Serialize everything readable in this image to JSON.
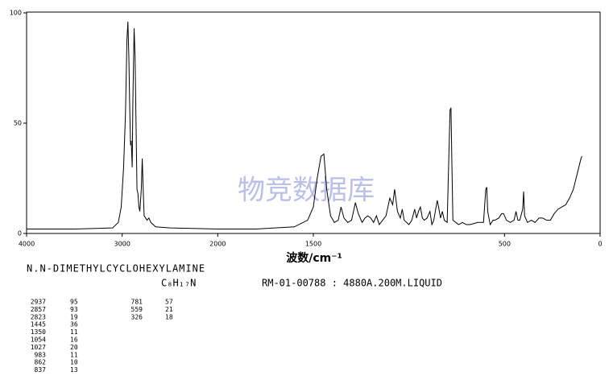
{
  "chart_data": {
    "type": "line",
    "color": "#000000",
    "xlabel": "波数/cm⁻¹",
    "watermark": "物竞数据库",
    "xlim": [
      4000,
      0
    ],
    "x_scale_break": 2000,
    "xticks": [
      4000,
      3000,
      2000,
      1500,
      500,
      0
    ],
    "ylim": [
      0,
      100
    ],
    "yticks": [
      0,
      50,
      100
    ],
    "x": [
      4000,
      3500,
      3100,
      3040,
      3010,
      2985,
      2965,
      2950,
      2940,
      2930,
      2920,
      2912,
      2905,
      2895,
      2888,
      2875,
      2865,
      2855,
      2845,
      2835,
      2825,
      2815,
      2800,
      2790,
      2780,
      2770,
      2740,
      2720,
      2700,
      2650,
      2500,
      2000,
      1800,
      1600,
      1530,
      1500,
      1480,
      1460,
      1445,
      1430,
      1410,
      1390,
      1370,
      1355,
      1340,
      1320,
      1300,
      1280,
      1265,
      1245,
      1230,
      1215,
      1200,
      1185,
      1170,
      1155,
      1120,
      1100,
      1085,
      1075,
      1060,
      1045,
      1035,
      1025,
      1000,
      985,
      970,
      960,
      950,
      940,
      930,
      920,
      905,
      890,
      880,
      870,
      862,
      852,
      845,
      835,
      825,
      815,
      800,
      785,
      780,
      775,
      770,
      740,
      720,
      700,
      680,
      640,
      610,
      598,
      593,
      588,
      575,
      560,
      550,
      530,
      515,
      505,
      490,
      470,
      450,
      440,
      430,
      420,
      405,
      400,
      395,
      380,
      360,
      340,
      320,
      300,
      280,
      260,
      240,
      220,
      200,
      180,
      160,
      140,
      120,
      100,
      95
    ],
    "values": [
      2,
      2,
      2.5,
      5,
      12,
      30,
      55,
      88,
      96,
      80,
      55,
      40,
      42,
      30,
      60,
      93,
      80,
      50,
      20,
      18,
      12,
      10,
      20,
      34,
      20,
      8,
      6,
      7,
      5,
      3,
      2.5,
      2,
      2,
      3,
      6,
      12,
      25,
      35,
      36,
      20,
      8,
      5,
      6,
      12,
      7,
      5,
      6,
      14,
      9,
      5,
      7,
      8,
      7,
      5,
      8,
      4,
      8,
      16,
      13,
      20,
      10,
      7,
      11,
      6,
      4,
      6,
      11,
      7,
      10,
      12,
      7,
      6,
      7,
      10,
      4,
      6,
      10,
      15,
      12,
      7,
      10,
      6,
      5,
      56,
      57,
      30,
      6,
      4,
      5,
      4,
      4,
      5,
      5,
      20,
      21,
      10,
      4,
      6,
      6,
      7,
      9,
      9,
      6,
      5,
      6,
      10,
      6,
      6,
      11,
      19,
      8,
      5,
      6,
      5,
      7,
      7,
      6,
      6,
      9,
      11,
      12,
      13,
      16,
      20,
      27,
      34,
      35
    ]
  },
  "compound": "N.N-DIMETHYLCYCLOHEXYLAMINE",
  "formula": "C₈H₁₇N",
  "record": "RM-01-00788 : 4880A.200M.LIQUID",
  "peaks": [
    [
      "2937",
      "95"
    ],
    [
      "2857",
      "93"
    ],
    [
      "2823",
      "19"
    ],
    [
      "1445",
      "36"
    ],
    [
      "1350",
      "11"
    ],
    [
      "1054",
      "16"
    ],
    [
      "1027",
      "20"
    ],
    [
      "983",
      "11"
    ],
    [
      "862",
      "10"
    ],
    [
      "837",
      "13"
    ],
    [
      "781",
      "57"
    ],
    [
      "559",
      "21"
    ],
    [
      "326",
      "18"
    ]
  ]
}
